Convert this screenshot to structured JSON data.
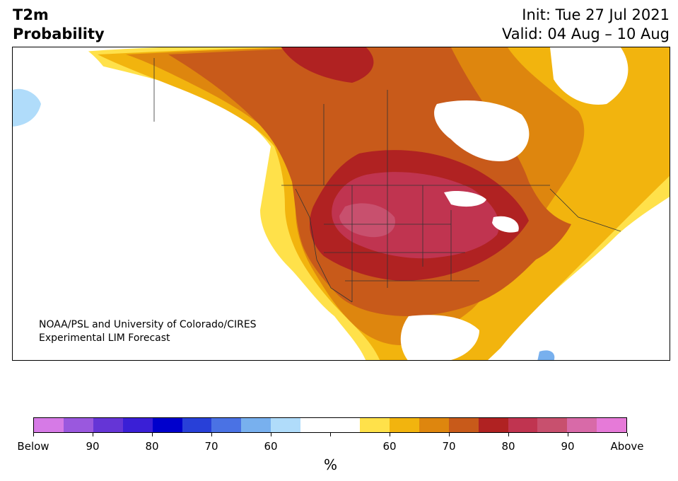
{
  "header": {
    "title_line1": "T2m",
    "title_line2": "Probability",
    "init": "Init: Tue 27 Jul 2021",
    "valid": "Valid: 04 Aug – 10 Aug"
  },
  "credit": {
    "line1": "NOAA/PSL and University of Colorado/CIRES",
    "line2": "Experimental LIM Forecast"
  },
  "colorbar": {
    "colors": [
      "#d67ae6",
      "#9a58de",
      "#6535d6",
      "#3a1fd6",
      "#0000cc",
      "#2840d8",
      "#4a72e4",
      "#78b0ee",
      "#b0dcfa",
      "#ffffff",
      "#ffffff",
      "#ffe14a",
      "#f2b40e",
      "#de860e",
      "#c85a1a",
      "#b02222",
      "#c03450",
      "#c8506e",
      "#d86aa8",
      "#e67ad8"
    ],
    "labels": [
      "Below",
      "90",
      "80",
      "70",
      "60",
      "60",
      "70",
      "80",
      "90",
      "Above"
    ],
    "unit": "%"
  }
}
